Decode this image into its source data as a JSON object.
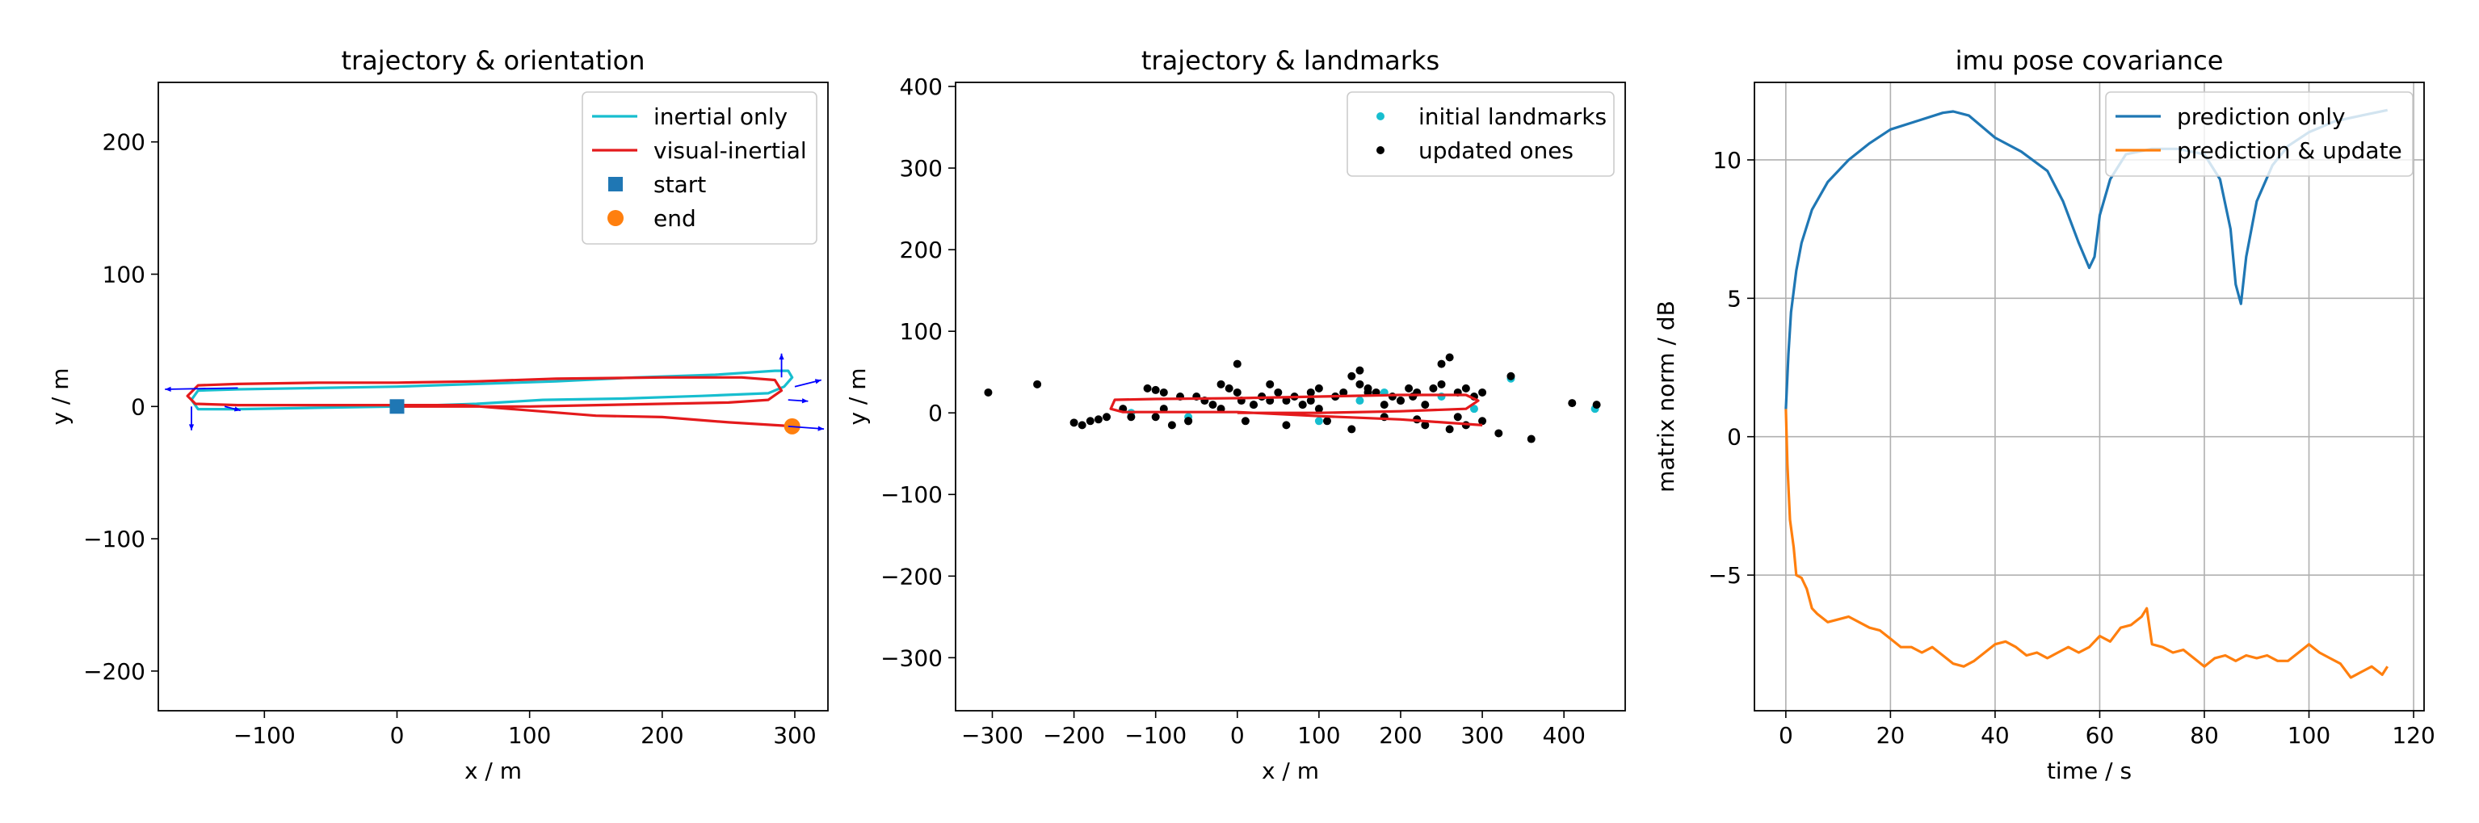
{
  "chart_data": [
    {
      "type": "line",
      "title": "trajectory & orientation",
      "xlabel": "x / m",
      "ylabel": "y / m",
      "xlim": [
        -180,
        325
      ],
      "ylim": [
        -230,
        245
      ],
      "xticks": [
        -100,
        0,
        100,
        200,
        300
      ],
      "xtick_labels": [
        "−100",
        "0",
        "100",
        "200",
        "300"
      ],
      "yticks": [
        -200,
        -100,
        0,
        100,
        200
      ],
      "ytick_labels": [
        "−200",
        "−100",
        "0",
        "100",
        "200"
      ],
      "grid": false,
      "legend_position": "top-right",
      "series": [
        {
          "name": "inertial only",
          "style": "line",
          "color": "#17becf",
          "x": [
            0,
            60,
            110,
            170,
            230,
            280,
            292,
            298,
            295,
            285,
            240,
            180,
            120,
            60,
            0,
            -60,
            -120,
            -150,
            -155,
            -150,
            -120,
            -60,
            0
          ],
          "y": [
            0,
            2,
            5,
            6,
            8,
            10,
            15,
            22,
            27,
            27,
            24,
            22,
            19,
            17,
            15,
            14,
            13,
            12,
            5,
            -2,
            -2,
            -1,
            0
          ]
        },
        {
          "name": "visual-inertial",
          "style": "line",
          "color": "#e41a1c",
          "x": [
            0,
            50,
            100,
            150,
            200,
            250,
            280,
            290,
            285,
            260,
            200,
            120,
            60,
            0,
            -60,
            -120,
            -150,
            -158,
            -152,
            -120,
            -60,
            0,
            50,
            100,
            150,
            200,
            250,
            300
          ],
          "y": [
            0,
            0,
            0,
            1,
            2,
            3,
            5,
            12,
            20,
            22,
            22,
            21,
            19,
            18,
            18,
            17,
            16,
            8,
            2,
            1,
            1,
            1,
            1,
            -3,
            -7,
            -8,
            -12,
            -15
          ]
        },
        {
          "name": "start",
          "style": "marker",
          "marker": "square",
          "color": "#1f77b4",
          "x": [
            0
          ],
          "y": [
            0
          ]
        },
        {
          "name": "end",
          "style": "marker",
          "marker": "circle",
          "color": "#ff7f0e",
          "x": [
            298
          ],
          "y": [
            -15
          ]
        }
      ],
      "orientation_arrows": {
        "color": "#0000ff",
        "segments": [
          [
            -120,
            14,
            -175,
            13
          ],
          [
            -155,
            0,
            -155,
            -18
          ],
          [
            -130,
            0,
            -118,
            -3
          ],
          [
            290,
            22,
            290,
            40
          ],
          [
            300,
            15,
            320,
            20
          ],
          [
            295,
            5,
            310,
            4
          ],
          [
            295,
            -15,
            322,
            -17
          ]
        ]
      }
    },
    {
      "type": "scatter",
      "title": "trajectory & landmarks",
      "xlabel": "x / m",
      "ylabel": "y / m",
      "xlim": [
        -345,
        475
      ],
      "ylim": [
        -365,
        405
      ],
      "xticks": [
        -300,
        -200,
        -100,
        0,
        100,
        200,
        300,
        400
      ],
      "xtick_labels": [
        "−300",
        "−200",
        "−100",
        "0",
        "100",
        "200",
        "300",
        "400"
      ],
      "yticks": [
        -300,
        -200,
        -100,
        0,
        100,
        200,
        300,
        400
      ],
      "ytick_labels": [
        "−300",
        "−200",
        "−100",
        "0",
        "100",
        "200",
        "300",
        "400"
      ],
      "grid": false,
      "legend_position": "top-right",
      "series": [
        {
          "name": "initial landmarks",
          "color": "#17becf",
          "x": [
            335,
            438,
            -60,
            20,
            150,
            250,
            290,
            -130,
            100,
            180
          ],
          "y": [
            42,
            5,
            -5,
            10,
            15,
            20,
            5,
            0,
            -10,
            25
          ]
        },
        {
          "name": "updated ones",
          "color": "#000000",
          "x": [
            -305,
            -245,
            -200,
            -190,
            -180,
            -170,
            -160,
            -140,
            -130,
            -110,
            -100,
            -90,
            -80,
            -70,
            -60,
            -50,
            -40,
            -20,
            -10,
            0,
            5,
            10,
            20,
            30,
            40,
            50,
            60,
            70,
            80,
            90,
            100,
            110,
            120,
            130,
            140,
            150,
            160,
            170,
            180,
            190,
            200,
            210,
            220,
            230,
            240,
            250,
            260,
            270,
            280,
            290,
            300,
            320,
            335,
            360,
            410,
            440,
            -100,
            -60,
            -20,
            20,
            60,
            100,
            140,
            180,
            220,
            260,
            300,
            150,
            250,
            0,
            40,
            80,
            120,
            200,
            280,
            -90,
            -30,
            30,
            90,
            160,
            230,
            270,
            215
          ],
          "y": [
            25,
            35,
            -12,
            -15,
            -10,
            -8,
            -5,
            5,
            -5,
            30,
            28,
            25,
            -15,
            20,
            -10,
            20,
            15,
            35,
            30,
            60,
            15,
            -10,
            10,
            20,
            35,
            25,
            15,
            20,
            10,
            25,
            30,
            -10,
            20,
            25,
            45,
            52,
            30,
            25,
            -5,
            20,
            15,
            30,
            25,
            -15,
            30,
            35,
            68,
            25,
            30,
            20,
            25,
            -25,
            45,
            -32,
            12,
            10,
            -5,
            -10,
            5,
            10,
            -15,
            5,
            -20,
            10,
            -8,
            -20,
            -10,
            35,
            60,
            25,
            15,
            10,
            20,
            15,
            -15,
            5,
            10,
            20,
            15,
            25,
            10,
            -5,
            20
          ]
        },
        {
          "name": "",
          "style": "line",
          "color": "#e41a1c",
          "x": [
            0,
            100,
            200,
            280,
            295,
            280,
            200,
            100,
            0,
            -100,
            -150,
            -155,
            -140,
            -60,
            0,
            100,
            200,
            300
          ],
          "y": [
            0,
            0,
            2,
            5,
            15,
            22,
            22,
            20,
            18,
            17,
            16,
            5,
            1,
            1,
            1,
            -4,
            -8,
            -15
          ]
        }
      ]
    },
    {
      "type": "line",
      "title": "imu pose covariance",
      "xlabel": "time / s",
      "ylabel": "matrix norm / dB",
      "xlim": [
        -6,
        122
      ],
      "ylim": [
        -9.9,
        12.8
      ],
      "xticks": [
        0,
        20,
        40,
        60,
        80,
        100,
        120
      ],
      "xtick_labels": [
        "0",
        "20",
        "40",
        "60",
        "80",
        "100",
        "120"
      ],
      "yticks": [
        -5,
        0,
        5,
        10
      ],
      "ytick_labels": [
        "−5",
        "0",
        "5",
        "10"
      ],
      "grid": true,
      "legend_position": "top-right",
      "series": [
        {
          "name": "prediction only",
          "color": "#1f77b4",
          "x": [
            0,
            0.5,
            1,
            2,
            3,
            5,
            8,
            12,
            16,
            20,
            25,
            30,
            32,
            35,
            40,
            45,
            50,
            53,
            56,
            58,
            59,
            60,
            62,
            65,
            70,
            75,
            80,
            83,
            85,
            86,
            87,
            88,
            90,
            93,
            96,
            100,
            105,
            110,
            115
          ],
          "y": [
            1,
            3,
            4.5,
            6,
            7,
            8.2,
            9.2,
            10,
            10.6,
            11.1,
            11.4,
            11.7,
            11.75,
            11.6,
            10.8,
            10.3,
            9.6,
            8.5,
            7,
            6.1,
            6.5,
            8,
            9.3,
            10.2,
            10.4,
            10.4,
            10.2,
            9.3,
            7.5,
            5.5,
            4.8,
            6.5,
            8.5,
            9.8,
            10.5,
            11,
            11.4,
            11.6,
            11.8
          ]
        },
        {
          "name": "prediction & update",
          "color": "#ff7f0e",
          "x": [
            0,
            0.3,
            0.8,
            1.5,
            2,
            3,
            4,
            5,
            6,
            8,
            10,
            12,
            14,
            16,
            18,
            20,
            22,
            24,
            26,
            28,
            30,
            32,
            34,
            36,
            38,
            40,
            42,
            44,
            46,
            48,
            50,
            52,
            54,
            56,
            58,
            60,
            62,
            64,
            66,
            68,
            69,
            70,
            72,
            74,
            76,
            78,
            80,
            82,
            84,
            86,
            88,
            90,
            92,
            94,
            96,
            98,
            100,
            102,
            104,
            106,
            108,
            110,
            112,
            114,
            115
          ],
          "y": [
            1,
            -1,
            -3,
            -4,
            -5,
            -5.1,
            -5.5,
            -6.2,
            -6.4,
            -6.7,
            -6.6,
            -6.5,
            -6.7,
            -6.9,
            -7,
            -7.3,
            -7.6,
            -7.6,
            -7.8,
            -7.6,
            -7.9,
            -8.2,
            -8.3,
            -8.1,
            -7.8,
            -7.5,
            -7.4,
            -7.6,
            -7.9,
            -7.8,
            -8.0,
            -7.8,
            -7.6,
            -7.8,
            -7.6,
            -7.2,
            -7.4,
            -6.9,
            -6.8,
            -6.5,
            -6.2,
            -7.5,
            -7.6,
            -7.8,
            -7.7,
            -8.0,
            -8.3,
            -8.0,
            -7.9,
            -8.1,
            -7.9,
            -8.0,
            -7.9,
            -8.1,
            -8.1,
            -7.8,
            -7.5,
            -7.8,
            -8.0,
            -8.2,
            -8.7,
            -8.5,
            -8.3,
            -8.6,
            -8.3
          ]
        }
      ]
    }
  ]
}
